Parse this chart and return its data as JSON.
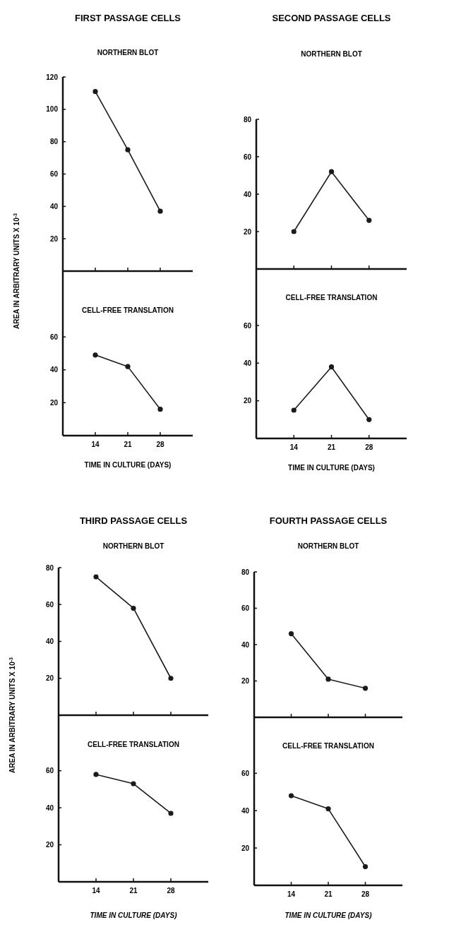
{
  "chart_data": [
    {
      "type": "line",
      "title": "FIRST PASSAGE CELLS",
      "subtitle": "NORTHERN BLOT",
      "ylabel": "AREA IN ARBITRARY UNITS  X 10$^{-3}$",
      "x": [
        14,
        21,
        28
      ],
      "xlim": [
        7,
        35
      ],
      "xticks": [
        {
          "value": 14,
          "label": null
        },
        {
          "value": 21,
          "label": null
        },
        {
          "value": 28,
          "label": null
        }
      ],
      "ylim": [
        0,
        120
      ],
      "yticks": [
        20,
        40,
        60,
        80,
        100,
        120
      ],
      "tick_labels": "y",
      "marker": "circle",
      "series": [
        {
          "color": "#1a1a1a",
          "values": [
            111,
            75,
            37
          ]
        }
      ]
    },
    {
      "type": "line",
      "title": "CELL-FREE TRANSLATION",
      "xlabel": "TIME IN CULTURE  (DAYS)",
      "x": [
        14,
        21,
        28
      ],
      "xlim": [
        7,
        35
      ],
      "xticks": [
        14,
        21,
        28
      ],
      "ylim": [
        0,
        100
      ],
      "yticks": [
        20,
        40,
        60
      ],
      "marker": "circle",
      "series": [
        {
          "color": "#1a1a1a",
          "values": [
            49,
            42,
            16
          ]
        }
      ]
    },
    {
      "type": "line",
      "title": "SECOND PASSAGE CELLS",
      "subtitle": "NORTHERN BLOT",
      "x": [
        14,
        21,
        28
      ],
      "xlim": [
        7,
        35
      ],
      "xticks": [
        {
          "value": 14,
          "label": null
        },
        {
          "value": 21,
          "label": null
        },
        {
          "value": 28,
          "label": null
        }
      ],
      "ylim": [
        0,
        80
      ],
      "yticks": [
        20,
        40,
        60,
        80
      ],
      "tick_labels": "y",
      "marker": "circle",
      "series": [
        {
          "color": "#1a1a1a",
          "values": [
            20,
            52,
            26
          ]
        }
      ]
    },
    {
      "type": "line",
      "title": "CELL-FREE TRANSLATION",
      "xlabel": "TIME IN CULTURE  (DAYS)",
      "x": [
        14,
        21,
        28
      ],
      "xlim": [
        7,
        35
      ],
      "xticks": [
        14,
        21,
        28
      ],
      "ylim": [
        0,
        90
      ],
      "yticks": [
        20,
        40,
        60
      ],
      "marker": "circle",
      "series": [
        {
          "color": "#1a1a1a",
          "values": [
            15,
            38,
            10
          ]
        }
      ]
    },
    {
      "type": "line",
      "title": "THIRD PASSAGE CELLS",
      "subtitle": "NORTHERN BLOT",
      "ylabel": "AREA IN ARBITRARY UNITS  X 10$^{-3}$",
      "x": [
        14,
        21,
        28
      ],
      "xlim": [
        7,
        35
      ],
      "xticks": [
        {
          "value": 14,
          "label": null
        },
        {
          "value": 21,
          "label": null
        },
        {
          "value": 28,
          "label": null
        }
      ],
      "ylim": [
        0,
        80
      ],
      "yticks": [
        20,
        40,
        60,
        80
      ],
      "tick_labels": "y",
      "marker": "circle",
      "series": [
        {
          "color": "#1a1a1a",
          "values": [
            75,
            58,
            20
          ]
        }
      ]
    },
    {
      "type": "line",
      "title": "CELL-FREE TRANSLATION",
      "xlabel": "TIME IN CULTURE  (DAYS)",
      "x": [
        14,
        21,
        28
      ],
      "xlim": [
        7,
        35
      ],
      "xticks": [
        14,
        21,
        28
      ],
      "ylim": [
        0,
        90
      ],
      "yticks": [
        20,
        40,
        60
      ],
      "marker": "circle",
      "series": [
        {
          "color": "#1a1a1a",
          "values": [
            58,
            53,
            37
          ]
        }
      ]
    },
    {
      "type": "line",
      "title": "FOURTH PASSAGE CELLS",
      "subtitle": "NORTHERN BLOT",
      "x": [
        14,
        21,
        28
      ],
      "xlim": [
        7,
        35
      ],
      "xticks": [
        {
          "value": 14,
          "label": null
        },
        {
          "value": 21,
          "label": null
        },
        {
          "value": 28,
          "label": null
        }
      ],
      "ylim": [
        0,
        80
      ],
      "yticks": [
        20,
        40,
        60,
        80
      ],
      "tick_labels": "y",
      "marker": "circle",
      "series": [
        {
          "color": "#1a1a1a",
          "values": [
            46,
            21,
            16
          ]
        }
      ]
    },
    {
      "type": "line",
      "title": "CELL-FREE TRANSLATION",
      "xlabel": "TIME IN CULTURE  (DAYS)",
      "x": [
        14,
        21,
        28
      ],
      "xlim": [
        7,
        35
      ],
      "xticks": [
        14,
        21,
        28
      ],
      "ylim": [
        0,
        90
      ],
      "yticks": [
        20,
        40,
        60
      ],
      "marker": "circle",
      "series": [
        {
          "color": "#1a1a1a",
          "values": [
            48,
            41,
            10
          ]
        }
      ]
    }
  ]
}
